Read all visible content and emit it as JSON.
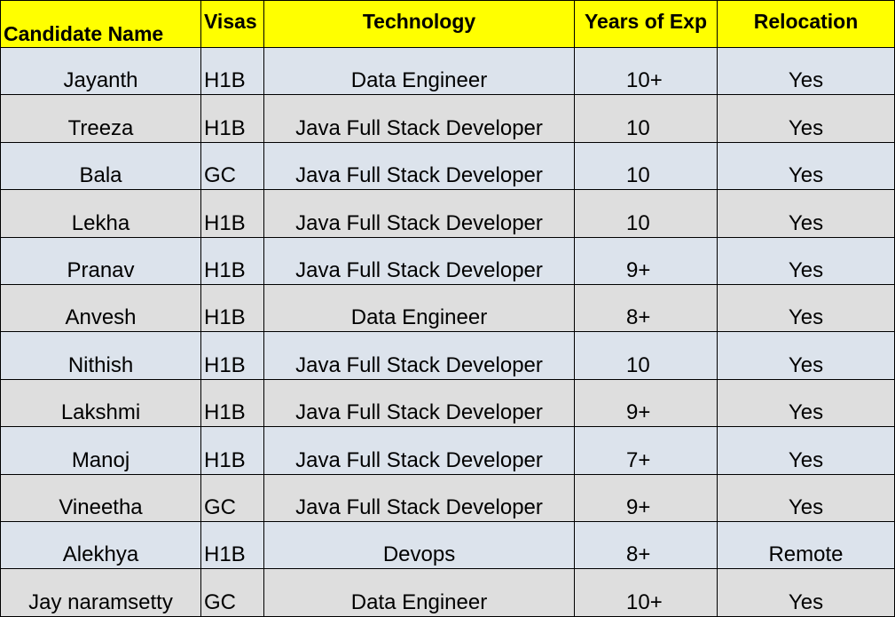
{
  "colors": {
    "header_fill": "#ffff00",
    "row_fill_odd": "#dce3ec",
    "row_fill_even": "#dedede",
    "border": "#000000"
  },
  "table": {
    "headers": {
      "candidate_name": "Candidate Name",
      "visas": "Visas",
      "technology": "Technology",
      "years_of_exp": "Years of Exp",
      "relocation": "Relocation"
    },
    "rows": [
      {
        "name": "Jayanth",
        "visa": "H1B",
        "technology": "Data Engineer",
        "exp": "10+",
        "relocation": "Yes"
      },
      {
        "name": "Treeza",
        "visa": "H1B",
        "technology": "Java Full Stack Developer",
        "exp": "10",
        "relocation": "Yes"
      },
      {
        "name": "Bala",
        "visa": "GC",
        "technology": "Java Full Stack Developer",
        "exp": "10",
        "relocation": "Yes"
      },
      {
        "name": "Lekha",
        "visa": "H1B",
        "technology": "Java Full Stack Developer",
        "exp": "10",
        "relocation": "Yes"
      },
      {
        "name": "Pranav",
        "visa": "H1B",
        "technology": "Java Full Stack Developer",
        "exp": "9+",
        "relocation": "Yes"
      },
      {
        "name": "Anvesh",
        "visa": "H1B",
        "technology": "Data Engineer",
        "exp": "8+",
        "relocation": "Yes"
      },
      {
        "name": "Nithish",
        "visa": "H1B",
        "technology": "Java Full Stack Developer",
        "exp": "10",
        "relocation": "Yes"
      },
      {
        "name": "Lakshmi",
        "visa": "H1B",
        "technology": "Java Full Stack Developer",
        "exp": "9+",
        "relocation": "Yes"
      },
      {
        "name": "Manoj",
        "visa": "H1B",
        "technology": "Java Full Stack Developer",
        "exp": "7+",
        "relocation": "Yes"
      },
      {
        "name": "Vineetha",
        "visa": "GC",
        "technology": "Java Full Stack Developer",
        "exp": "9+",
        "relocation": "Yes"
      },
      {
        "name": "Alekhya",
        "visa": "H1B",
        "technology": "Devops",
        "exp": "8+",
        "relocation": "Remote"
      },
      {
        "name": "Jay naramsetty",
        "visa": "GC",
        "technology": "Data Engineer",
        "exp": "10+",
        "relocation": "Yes"
      }
    ]
  }
}
